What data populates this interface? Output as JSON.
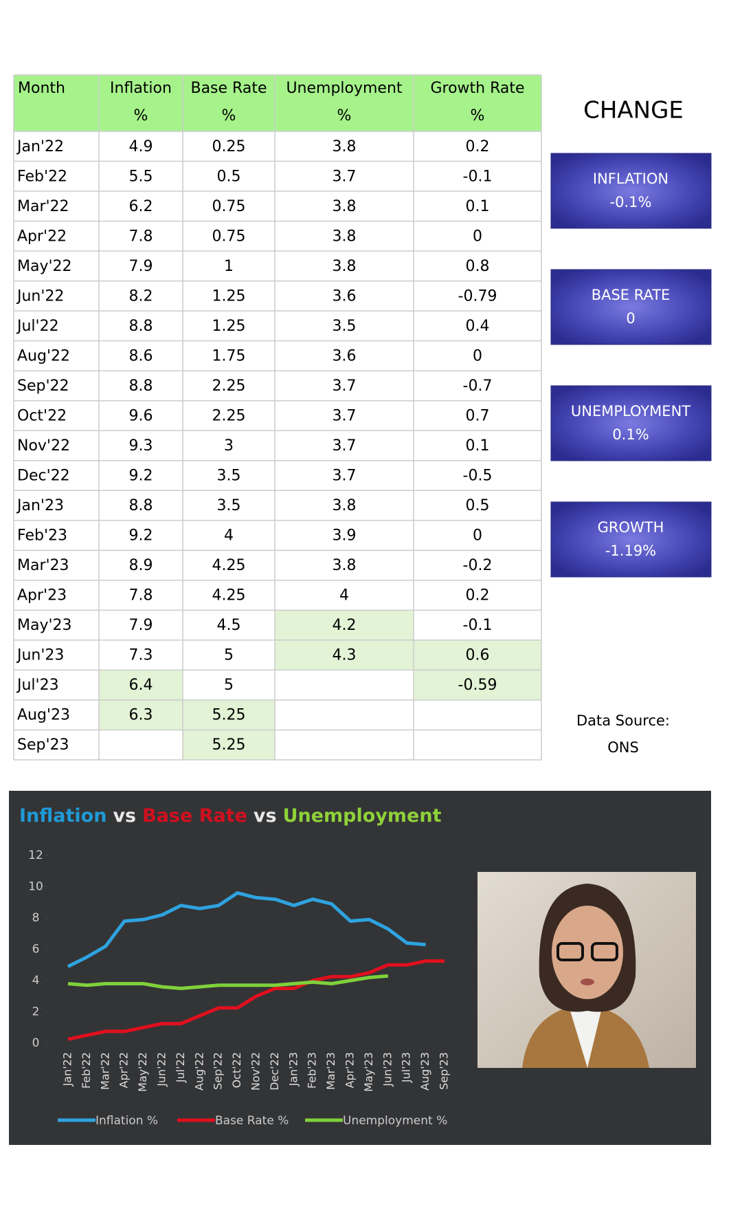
{
  "table": {
    "headers": [
      {
        "name": "Month"
      },
      {
        "name": "Inflation",
        "unit": "%"
      },
      {
        "name": "Base Rate",
        "unit": "%"
      },
      {
        "name": "Unemployment",
        "unit": "%"
      },
      {
        "name": "Growth Rate",
        "unit": "%"
      }
    ],
    "rows": [
      [
        "Jan'22",
        "4.9",
        "0.25",
        "3.8",
        "0.2"
      ],
      [
        "Feb'22",
        "5.5",
        "0.5",
        "3.7",
        "-0.1"
      ],
      [
        "Mar'22",
        "6.2",
        "0.75",
        "3.8",
        "0.1"
      ],
      [
        "Apr'22",
        "7.8",
        "0.75",
        "3.8",
        "0"
      ],
      [
        "May'22",
        "7.9",
        "1",
        "3.8",
        "0.8"
      ],
      [
        "Jun'22",
        "8.2",
        "1.25",
        "3.6",
        "-0.79"
      ],
      [
        "Jul'22",
        "8.8",
        "1.25",
        "3.5",
        "0.4"
      ],
      [
        "Aug'22",
        "8.6",
        "1.75",
        "3.6",
        "0"
      ],
      [
        "Sep'22",
        "8.8",
        "2.25",
        "3.7",
        "-0.7"
      ],
      [
        "Oct'22",
        "9.6",
        "2.25",
        "3.7",
        "0.7"
      ],
      [
        "Nov'22",
        "9.3",
        "3",
        "3.7",
        "0.1"
      ],
      [
        "Dec'22",
        "9.2",
        "3.5",
        "3.7",
        "-0.5"
      ],
      [
        "Jan'23",
        "8.8",
        "3.5",
        "3.8",
        "0.5"
      ],
      [
        "Feb'23",
        "9.2",
        "4",
        "3.9",
        "0"
      ],
      [
        "Mar'23",
        "8.9",
        "4.25",
        "3.8",
        "-0.2"
      ],
      [
        "Apr'23",
        "7.8",
        "4.25",
        "4",
        "0.2"
      ],
      [
        "May'23",
        "7.9",
        "4.5",
        "4.2",
        "-0.1"
      ],
      [
        "Jun'23",
        "7.3",
        "5",
        "4.3",
        "0.6"
      ],
      [
        "Jul'23",
        "6.4",
        "5",
        null,
        "-0.59"
      ],
      [
        "Aug'23",
        "6.3",
        "5.25",
        null,
        null
      ],
      [
        "Sep'23",
        null,
        "5.25",
        null,
        null
      ]
    ],
    "highlight_color": "#e2f3d6",
    "header_color": "#a6f28b"
  },
  "change": {
    "title": "CHANGE",
    "boxes": [
      {
        "label": "INFLATION",
        "value": "-0.1%"
      },
      {
        "label": "BASE RATE",
        "value": "0"
      },
      {
        "label": "UNEMPLOYMENT",
        "value": "0.1%"
      },
      {
        "label": "GROWTH",
        "value": "-1.19%"
      }
    ]
  },
  "source": {
    "label": "Data Source:",
    "value": "ONS"
  },
  "chart_data": {
    "type": "line",
    "title_parts": [
      {
        "text": "Inflation",
        "color": "#1f9ad6"
      },
      {
        "text": "vs",
        "color": "#e8e8e8"
      },
      {
        "text": "Base Rate",
        "color": "#d0101f"
      },
      {
        "text": "vs",
        "color": "#e8e8e8"
      },
      {
        "text": "Unemployment",
        "color": "#8ed13a"
      }
    ],
    "categories": [
      "Jan'22",
      "Feb'22",
      "Mar'22",
      "Apr'22",
      "May'22",
      "Jun'22",
      "Jul'22",
      "Aug'22",
      "Sep'22",
      "Oct'22",
      "Nov'22",
      "Dec'22",
      "Jan'23",
      "Feb'23",
      "Mar'23",
      "Apr'23",
      "May'23",
      "Jun'23",
      "Jul'23",
      "Aug'23",
      "Sep'23"
    ],
    "series": [
      {
        "name": "Inflation %",
        "color": "#2ea3e0",
        "values": [
          4.9,
          5.5,
          6.2,
          7.8,
          7.9,
          8.2,
          8.8,
          8.6,
          8.8,
          9.6,
          9.3,
          9.2,
          8.8,
          9.2,
          8.9,
          7.8,
          7.9,
          7.3,
          6.4,
          6.3,
          null
        ]
      },
      {
        "name": "Base Rate %",
        "color": "#e0101e",
        "values": [
          0.25,
          0.5,
          0.75,
          0.75,
          1,
          1.25,
          1.25,
          1.75,
          2.25,
          2.25,
          3,
          3.5,
          3.5,
          4,
          4.25,
          4.25,
          4.5,
          5,
          5,
          5.25,
          5.25
        ]
      },
      {
        "name": "Unemployment %",
        "color": "#7fd13b",
        "values": [
          3.8,
          3.7,
          3.8,
          3.8,
          3.8,
          3.6,
          3.5,
          3.6,
          3.7,
          3.7,
          3.7,
          3.7,
          3.8,
          3.9,
          3.8,
          4,
          4.2,
          4.3,
          null,
          null,
          null
        ]
      }
    ],
    "ylim": [
      0,
      12
    ],
    "yticks": [
      0,
      2,
      4,
      6,
      8,
      10,
      12
    ],
    "legend": "bottom"
  }
}
